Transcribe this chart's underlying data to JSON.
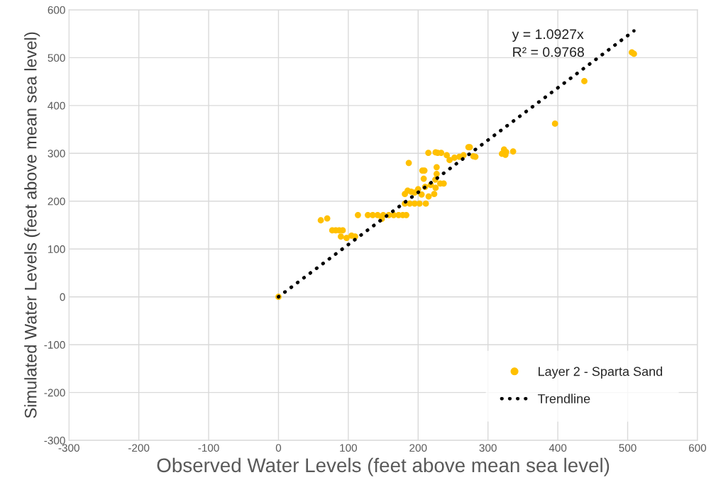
{
  "chart_data": {
    "type": "scatter",
    "xlabel": "Observed Water Levels (feet above mean sea level)",
    "ylabel": "Simulated Water Levels (feet above mean sea level)",
    "xlim": [
      -300,
      600
    ],
    "xticks": [
      -300,
      -200,
      -100,
      0,
      100,
      200,
      300,
      400,
      500,
      600
    ],
    "ylim": [
      -300,
      600
    ],
    "yticks": [
      -300,
      -200,
      -100,
      0,
      100,
      200,
      300,
      400,
      500,
      600
    ],
    "grid": true,
    "legend": "bottom right",
    "annotations": [
      "y = 1.0927x\nR² = 0.9768"
    ],
    "series": [
      {
        "name": "Layer 2 - Sparta Sand",
        "color": "#ffc000",
        "marker": "circle",
        "x": [
          0,
          60.6,
          69.8,
          77,
          82,
          87,
          92,
          89.4,
          97.5,
          104.6,
          109.7,
          113.8,
          128,
          135,
          142,
          150,
          158,
          165,
          172,
          178,
          183,
          148,
          181,
          188,
          195,
          202,
          211,
          186.6,
          181,
          190,
          200,
          210,
          218,
          225,
          185,
          195,
          205,
          215,
          206,
          209,
          208,
          226.5,
          226.5,
          224.6,
          231.6,
          236.6,
          223,
          214.6,
          225,
          228,
          233,
          241,
          245,
          252,
          259,
          265,
          272,
          274,
          279,
          282,
          320,
          323,
          325,
          326,
          336,
          396,
          438,
          506,
          509
        ],
        "values": [
          0,
          160,
          164,
          139,
          139,
          139,
          139,
          126,
          123,
          128,
          126,
          171,
          171,
          171,
          171,
          171,
          171,
          171,
          171,
          171,
          171,
          163,
          195,
          195,
          195,
          195,
          195,
          280,
          215,
          220,
          225,
          230,
          234,
          228,
          222,
          218,
          214,
          210,
          264,
          264,
          247,
          271,
          257,
          245,
          237,
          237,
          215,
          301,
          302,
          301,
          301,
          296,
          286,
          291,
          293,
          296,
          313,
          313,
          294,
          293,
          299,
          308,
          297,
          303,
          304,
          362,
          451,
          511,
          508
        ]
      },
      {
        "name": "Trendline",
        "type": "line",
        "color": "#000000",
        "line_style": "dotted",
        "marker": "none",
        "x": [
          0,
          509
        ],
        "values": [
          0,
          556
        ]
      }
    ]
  }
}
